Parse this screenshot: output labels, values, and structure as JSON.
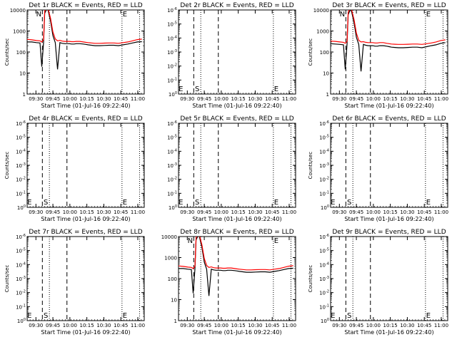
{
  "colors": {
    "events": "#000000",
    "lld": "#ff0000",
    "axis": "#000000",
    "background": "#ffffff"
  },
  "chart_data": [
    {
      "type": "line",
      "title": "Det 1r BLACK = Events, RED = LLD",
      "xlabel": "Start Time (01-Jul-16 09:22:40)",
      "ylabel": "Counts/sec",
      "x_ticks": [
        "09:30",
        "09:45",
        "10:00",
        "10:15",
        "10:30",
        "10:45",
        "11:00"
      ],
      "y_ticks": [
        "1",
        "10",
        "100",
        "1000",
        "10000"
      ],
      "ylim": [
        1,
        10000
      ],
      "yscale": "log",
      "has_data": true,
      "markers": [
        {
          "label": "N",
          "position": "top"
        },
        {
          "label": "E",
          "position": "top"
        }
      ],
      "series": [
        {
          "name": "Events",
          "color": "#000000",
          "x": [
            0,
            4,
            8,
            11,
            12.5,
            14,
            15,
            17,
            18,
            20,
            22,
            24,
            26,
            28,
            30,
            32,
            34,
            36,
            38,
            40,
            42,
            45,
            48,
            50,
            52,
            55,
            58,
            60,
            62,
            66,
            70,
            74,
            78,
            82,
            86,
            90,
            94,
            98
          ],
          "y": [
            300,
            300,
            280,
            270,
            20,
            280,
            7000,
            12000,
            9000,
            3000,
            600,
            280,
            15,
            280,
            260,
            250,
            250,
            250,
            240,
            240,
            250,
            250,
            240,
            230,
            220,
            210,
            200,
            200,
            200,
            205,
            210,
            210,
            200,
            220,
            240,
            270,
            300,
            310
          ]
        },
        {
          "name": "LLD",
          "color": "#ff0000",
          "x": [
            0,
            4,
            8,
            11,
            12.5,
            14,
            15,
            17,
            18,
            20,
            22,
            24,
            26,
            28,
            30,
            32,
            34,
            36,
            38,
            40,
            42,
            45,
            48,
            50,
            52,
            55,
            58,
            60,
            62,
            66,
            70,
            74,
            78,
            82,
            86,
            90,
            94,
            98
          ],
          "y": [
            400,
            380,
            350,
            340,
            300,
            380,
            9000,
            14000,
            11000,
            4000,
            900,
            420,
            340,
            360,
            330,
            320,
            320,
            320,
            310,
            310,
            320,
            320,
            300,
            290,
            280,
            270,
            260,
            260,
            260,
            265,
            270,
            270,
            260,
            280,
            300,
            340,
            390,
            410
          ]
        }
      ]
    },
    {
      "type": "line",
      "title": "Det 2r BLACK = Events, RED = LLD",
      "xlabel": "Start Time (01-Jul-16 09:22:40)",
      "ylabel": "",
      "x_ticks": [
        "09:30",
        "09:45",
        "10:00",
        "10:15",
        "10:30",
        "10:45",
        "11:00"
      ],
      "y_ticks": [
        "10^0",
        "10^-1",
        "10^-2",
        "10^-3",
        "10^-4",
        "10^-5",
        "10^-6"
      ],
      "ylim": [
        1,
        1e-06
      ],
      "yscale": "log",
      "has_data": false,
      "markers": [
        {
          "label": "E",
          "position": "bottom"
        },
        {
          "label": "S",
          "position": "bottom"
        },
        {
          "label": "E",
          "position": "bottom"
        }
      ],
      "series": []
    },
    {
      "type": "line",
      "title": "Det 3r BLACK = Events, RED = LLD",
      "xlabel": "Start Time (01-Jul-16 09:22:40)",
      "ylabel": "Counts/sec",
      "x_ticks": [
        "09:30",
        "09:45",
        "10:00",
        "10:15",
        "10:30",
        "10:45",
        "11:00"
      ],
      "y_ticks": [
        "1",
        "10",
        "100",
        "1000",
        "10000"
      ],
      "ylim": [
        1,
        10000
      ],
      "yscale": "log",
      "has_data": true,
      "markers": [
        {
          "label": "N",
          "position": "top"
        },
        {
          "label": "E",
          "position": "top"
        }
      ],
      "series": [
        {
          "name": "Events",
          "color": "#000000",
          "x": [
            0,
            4,
            8,
            11,
            12.5,
            14,
            15,
            17,
            18,
            20,
            22,
            24,
            26,
            28,
            30,
            32,
            34,
            36,
            38,
            40,
            42,
            45,
            48,
            50,
            52,
            55,
            58,
            60,
            62,
            66,
            70,
            74,
            78,
            82,
            86,
            90,
            94,
            98
          ],
          "y": [
            250,
            240,
            230,
            220,
            15,
            230,
            6000,
            11000,
            8000,
            2500,
            500,
            230,
            12,
            230,
            210,
            200,
            200,
            200,
            190,
            190,
            200,
            200,
            190,
            180,
            170,
            165,
            160,
            160,
            160,
            165,
            170,
            170,
            160,
            180,
            200,
            220,
            260,
            280
          ]
        },
        {
          "name": "LLD",
          "color": "#ff0000",
          "x": [
            0,
            4,
            8,
            11,
            12.5,
            14,
            15,
            17,
            18,
            20,
            22,
            24,
            26,
            28,
            30,
            32,
            34,
            36,
            38,
            40,
            42,
            45,
            48,
            50,
            52,
            55,
            58,
            60,
            62,
            66,
            70,
            74,
            78,
            82,
            86,
            90,
            94,
            98
          ],
          "y": [
            330,
            320,
            300,
            290,
            260,
            320,
            8000,
            13000,
            10000,
            3500,
            800,
            360,
            300,
            310,
            290,
            280,
            280,
            280,
            270,
            270,
            280,
            280,
            260,
            250,
            240,
            235,
            230,
            230,
            230,
            235,
            240,
            240,
            230,
            250,
            270,
            300,
            350,
            380
          ]
        }
      ]
    },
    {
      "type": "line",
      "title": "Det 4r BLACK = Events, RED = LLD",
      "xlabel": "Start Time (01-Jul-16 09:22:40)",
      "ylabel": "Counts/sec",
      "x_ticks": [
        "09:30",
        "09:45",
        "10:00",
        "10:15",
        "10:30",
        "10:45",
        "11:00"
      ],
      "y_ticks": [
        "10^0",
        "10^-1",
        "10^-2",
        "10^-3",
        "10^-4",
        "10^-5",
        "10^-6"
      ],
      "ylim": [
        1,
        1e-06
      ],
      "yscale": "log",
      "has_data": false,
      "markers": [
        {
          "label": "E",
          "position": "bottom"
        },
        {
          "label": "S",
          "position": "bottom"
        },
        {
          "label": "E",
          "position": "bottom"
        }
      ],
      "series": []
    },
    {
      "type": "line",
      "title": "Det 5r BLACK = Events, RED = LLD",
      "xlabel": "Start Time (01-Jul-16 09:22:40)",
      "ylabel": "",
      "x_ticks": [
        "09:30",
        "09:45",
        "10:00",
        "10:15",
        "10:30",
        "10:45",
        "11:00"
      ],
      "y_ticks": [
        "10^0",
        "10^-1",
        "10^-2",
        "10^-3",
        "10^-4",
        "10^-5",
        "10^-6"
      ],
      "ylim": [
        1,
        1e-06
      ],
      "yscale": "log",
      "has_data": false,
      "markers": [
        {
          "label": "E",
          "position": "bottom"
        },
        {
          "label": "S",
          "position": "bottom"
        },
        {
          "label": "E",
          "position": "bottom"
        }
      ],
      "series": []
    },
    {
      "type": "line",
      "title": "Det 6r BLACK = Events, RED = LLD",
      "xlabel": "Start Time (01-Jul-16 09:22:40)",
      "ylabel": "Counts/sec",
      "x_ticks": [
        "09:30",
        "09:45",
        "10:00",
        "10:15",
        "10:30",
        "10:45",
        "11:00"
      ],
      "y_ticks": [
        "10^0",
        "10^-1",
        "10^-2",
        "10^-3",
        "10^-4",
        "10^-5",
        "10^-6"
      ],
      "ylim": [
        1,
        1e-06
      ],
      "yscale": "log",
      "has_data": false,
      "markers": [
        {
          "label": "E",
          "position": "bottom"
        },
        {
          "label": "S",
          "position": "bottom"
        },
        {
          "label": "E",
          "position": "bottom"
        }
      ],
      "series": []
    },
    {
      "type": "line",
      "title": "Det 7r BLACK = Events, RED = LLD",
      "xlabel": "Start Time (01-Jul-16 09:22:40)",
      "ylabel": "Counts/sec",
      "x_ticks": [
        "09:30",
        "09:45",
        "10:00",
        "10:15",
        "10:30",
        "10:45",
        "11:00"
      ],
      "y_ticks": [
        "10^0",
        "10^-1",
        "10^-2",
        "10^-3",
        "10^-4",
        "10^-5",
        "10^-6"
      ],
      "ylim": [
        1,
        1e-06
      ],
      "yscale": "log",
      "has_data": false,
      "markers": [
        {
          "label": "E",
          "position": "bottom"
        },
        {
          "label": "S",
          "position": "bottom"
        },
        {
          "label": "E",
          "position": "bottom"
        }
      ],
      "series": []
    },
    {
      "type": "line",
      "title": "Det 8r BLACK = Events, RED = LLD",
      "xlabel": "Start Time (01-Jul-16 09:22:40)",
      "ylabel": "",
      "x_ticks": [
        "09:30",
        "09:45",
        "10:00",
        "10:15",
        "10:30",
        "10:45",
        "11:00"
      ],
      "y_ticks": [
        "1",
        "10",
        "100",
        "1000",
        "10000"
      ],
      "ylim": [
        1,
        10000
      ],
      "yscale": "log",
      "has_data": true,
      "markers": [
        {
          "label": "N",
          "position": "top"
        },
        {
          "label": "E",
          "position": "top"
        }
      ],
      "series": [
        {
          "name": "Events",
          "color": "#000000",
          "x": [
            0,
            4,
            8,
            11,
            12.5,
            14,
            15,
            17,
            18,
            20,
            22,
            24,
            26,
            28,
            30,
            32,
            34,
            36,
            38,
            40,
            42,
            45,
            48,
            50,
            52,
            55,
            58,
            60,
            62,
            66,
            70,
            74,
            78,
            82,
            86,
            90,
            94,
            98
          ],
          "y": [
            300,
            300,
            280,
            270,
            20,
            280,
            7000,
            12000,
            9000,
            3000,
            600,
            280,
            15,
            280,
            260,
            250,
            250,
            250,
            240,
            240,
            250,
            250,
            240,
            230,
            220,
            210,
            200,
            200,
            200,
            205,
            210,
            210,
            200,
            220,
            240,
            270,
            300,
            310
          ]
        },
        {
          "name": "LLD",
          "color": "#ff0000",
          "x": [
            0,
            4,
            8,
            11,
            12.5,
            14,
            15,
            17,
            18,
            20,
            22,
            24,
            26,
            28,
            30,
            32,
            34,
            36,
            38,
            40,
            42,
            45,
            48,
            50,
            52,
            55,
            58,
            60,
            62,
            66,
            70,
            74,
            78,
            82,
            86,
            90,
            94,
            98
          ],
          "y": [
            400,
            380,
            350,
            340,
            300,
            380,
            9000,
            14000,
            11000,
            4000,
            900,
            420,
            340,
            360,
            330,
            320,
            320,
            320,
            310,
            310,
            320,
            320,
            300,
            290,
            280,
            270,
            260,
            260,
            260,
            265,
            270,
            270,
            260,
            280,
            300,
            340,
            390,
            410
          ]
        }
      ]
    },
    {
      "type": "line",
      "title": "Det 9r BLACK = Events, RED = LLD",
      "xlabel": "Start Time (01-Jul-16 09:22:40)",
      "ylabel": "Counts/sec",
      "x_ticks": [
        "09:30",
        "09:45",
        "10:00",
        "10:15",
        "10:30",
        "10:45",
        "11:00"
      ],
      "y_ticks": [
        "10^0",
        "10^-1",
        "10^-2",
        "10^-3",
        "10^-4",
        "10^-5",
        "10^-6"
      ],
      "ylim": [
        1,
        1e-06
      ],
      "yscale": "log",
      "has_data": false,
      "markers": [
        {
          "label": "E",
          "position": "bottom"
        },
        {
          "label": "S",
          "position": "bottom"
        },
        {
          "label": "E",
          "position": "bottom"
        }
      ],
      "series": []
    }
  ]
}
